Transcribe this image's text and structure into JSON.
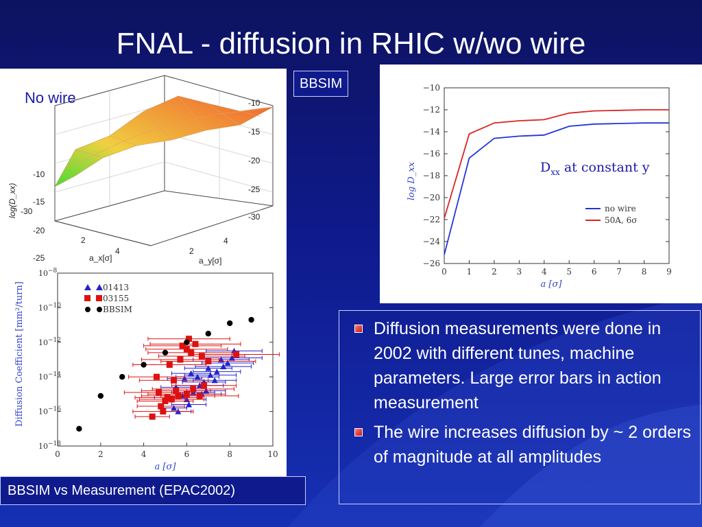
{
  "slide": {
    "title": "FNAL - diffusion in RHIC w/wo wire",
    "bbsim_box_label": "BBSIM",
    "caption": "BBSIM vs Measurement (EPAC2002)",
    "no_wire_label": "No wire",
    "dxx_label": {
      "main": "D",
      "sub": "xx",
      "rest": " at constant y"
    },
    "bullets": [
      "Diffusion measurements were done in 2002 with different tunes, machine parameters. Large error bars in action measurement",
      "The wire increases diffusion by ~ 2 orders of magnitude at all amplitudes"
    ]
  },
  "chart_data": [
    {
      "type": "surface",
      "title": "",
      "zlabel": "log(D_xx)",
      "xlabel": "a_x[σ]",
      "ylabel": "a_y[σ]",
      "z_ticks": [
        "-10",
        "-15",
        "-20",
        "-25",
        "-30"
      ],
      "x_ticks": [
        "2",
        "4"
      ],
      "y_ticks": [
        "2",
        "4"
      ],
      "colors": {
        "low": "#44dd33",
        "mid": "#f0d040",
        "high": "#f06030"
      }
    },
    {
      "type": "line",
      "xlabel": "a [σ]",
      "ylabel": "log D_xx",
      "xlim": [
        0,
        9
      ],
      "ylim": [
        -26,
        -10
      ],
      "x_ticks": [
        "0",
        "1",
        "2",
        "3",
        "4",
        "5",
        "6",
        "7",
        "8",
        "9"
      ],
      "y_ticks": [
        "−10",
        "−12",
        "−14",
        "−16",
        "−18",
        "−20",
        "−22",
        "−24",
        "−26"
      ],
      "legend_position": "bottom-right",
      "series": [
        {
          "name": "no wire",
          "color": "#2233dd",
          "x": [
            0,
            1,
            2,
            3,
            4,
            5,
            6,
            7,
            8,
            9
          ],
          "values": [
            -25.2,
            -16.4,
            -14.6,
            -14.4,
            -14.3,
            -13.5,
            -13.3,
            -13.25,
            -13.2,
            -13.2
          ]
        },
        {
          "name": "50A, 6σ",
          "color": "#dd2222",
          "x": [
            0,
            1,
            2,
            3,
            4,
            5,
            6,
            7,
            8,
            9
          ],
          "values": [
            -21.9,
            -14.2,
            -13.2,
            -13.0,
            -12.9,
            -12.3,
            -12.1,
            -12.05,
            -12.0,
            -12.0
          ]
        }
      ]
    },
    {
      "type": "scatter",
      "xlabel": "a [σ]",
      "ylabel": "Diffusion Coefficient [mm²/turn]",
      "xlim": [
        0,
        10
      ],
      "ylim_exp": [
        -18,
        -8
      ],
      "x_ticks": [
        "0",
        "2",
        "4",
        "6",
        "8",
        "10"
      ],
      "y_ticks": [
        {
          "base": "10",
          "exp": "−8",
          "value": -8
        },
        {
          "base": "10",
          "exp": "−10",
          "value": -10
        },
        {
          "base": "10",
          "exp": "−12",
          "value": -12
        },
        {
          "base": "10",
          "exp": "−14",
          "value": -14
        },
        {
          "base": "10",
          "exp": "−16",
          "value": -16
        },
        {
          "base": "10",
          "exp": "−18",
          "value": -18
        }
      ],
      "legend_position": "top-left",
      "series": [
        {
          "name": "01413",
          "marker": "triangle",
          "color": "#2222cc",
          "points": [
            [
              5.6,
              -16.0,
              0.6
            ],
            [
              5.8,
              -15.1,
              0.8
            ],
            [
              6.0,
              -15.3,
              0.9
            ],
            [
              5.2,
              -15.2,
              0.7
            ],
            [
              6.3,
              -14.9,
              1.0
            ],
            [
              6.6,
              -14.5,
              1.1
            ],
            [
              6.8,
              -14.3,
              1.0
            ],
            [
              7.1,
              -13.9,
              1.2
            ],
            [
              5.9,
              -14.1,
              0.8
            ],
            [
              6.2,
              -13.8,
              0.9
            ],
            [
              7.4,
              -13.7,
              1.1
            ],
            [
              7.7,
              -13.4,
              1.3
            ],
            [
              7.9,
              -13.2,
              1.2
            ],
            [
              8.1,
              -12.9,
              1.4
            ],
            [
              6.5,
              -14.0,
              1.0
            ],
            [
              7.0,
              -13.5,
              1.1
            ],
            [
              5.5,
              -14.6,
              0.7
            ],
            [
              6.9,
              -14.8,
              0.9
            ],
            [
              7.3,
              -14.2,
              1.0
            ],
            [
              6.1,
              -15.6,
              0.8
            ],
            [
              5.4,
              -15.8,
              0.6
            ],
            [
              7.6,
              -13.0,
              1.3
            ],
            [
              8.2,
              -12.5,
              1.3
            ],
            [
              6.7,
              -15.0,
              0.9
            ]
          ]
        },
        {
          "name": "03155",
          "marker": "square",
          "color": "#dd1111",
          "points": [
            [
              4.4,
              -16.3,
              0.8
            ],
            [
              4.8,
              -15.7,
              1.1
            ],
            [
              5.0,
              -15.4,
              1.3
            ],
            [
              4.9,
              -16.0,
              1.4
            ],
            [
              5.3,
              -15.3,
              1.5
            ],
            [
              5.6,
              -15.1,
              1.7
            ],
            [
              6.0,
              -15.0,
              1.8
            ],
            [
              4.7,
              -14.9,
              1.6
            ],
            [
              5.1,
              -15.2,
              1.5
            ],
            [
              6.3,
              -14.7,
              1.9
            ],
            [
              4.6,
              -14.0,
              1.3
            ],
            [
              5.4,
              -14.2,
              1.6
            ],
            [
              5.2,
              -13.3,
              1.7
            ],
            [
              5.7,
              -13.0,
              1.8
            ],
            [
              6.2,
              -12.6,
              2.0
            ],
            [
              6.0,
              -12.4,
              1.9
            ],
            [
              6.4,
              -12.1,
              2.1
            ],
            [
              6.7,
              -12.8,
              2.0
            ],
            [
              7.0,
              -13.1,
              2.2
            ],
            [
              8.3,
              -12.7,
              2.0
            ],
            [
              6.1,
              -11.8,
              1.9
            ],
            [
              5.8,
              -12.2,
              1.8
            ],
            [
              6.6,
              -15.1,
              1.8
            ],
            [
              5.5,
              -14.8,
              1.6
            ],
            [
              6.8,
              -14.5,
              1.5
            ]
          ]
        },
        {
          "name": "BBSIM",
          "marker": "circle",
          "color": "#000000",
          "points": [
            [
              1,
              -17.0
            ],
            [
              2,
              -15.1
            ],
            [
              3,
              -14.0
            ],
            [
              4,
              -13.3
            ],
            [
              5,
              -12.6
            ],
            [
              6,
              -12.0
            ],
            [
              7,
              -11.5
            ],
            [
              8,
              -10.9
            ],
            [
              9,
              -10.7
            ]
          ]
        }
      ]
    }
  ]
}
